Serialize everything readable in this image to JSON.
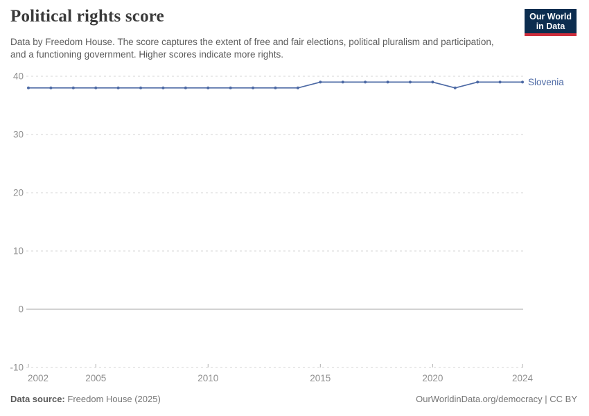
{
  "header": {
    "title": "Political rights score",
    "subtitle": "Data by Freedom House. The score captures the extent of free and fair elections, political pluralism and participation, and a functioning government. Higher scores indicate more rights.",
    "logo": {
      "line1": "Our World",
      "line2": "in Data"
    }
  },
  "chart_data": {
    "type": "line",
    "title": "Political rights score",
    "xlabel": "",
    "ylabel": "",
    "x": [
      2002,
      2003,
      2004,
      2005,
      2006,
      2007,
      2008,
      2009,
      2010,
      2011,
      2012,
      2013,
      2014,
      2015,
      2016,
      2017,
      2018,
      2019,
      2020,
      2021,
      2022,
      2023,
      2024
    ],
    "series": [
      {
        "name": "Slovenia",
        "color": "#4D6AA5",
        "values": [
          38,
          38,
          38,
          38,
          38,
          38,
          38,
          38,
          38,
          38,
          38,
          38,
          38,
          39,
          39,
          39,
          39,
          39,
          39,
          38,
          39,
          39,
          39
        ]
      }
    ],
    "xlim": [
      2002,
      2024
    ],
    "ylim": [
      -10,
      40
    ],
    "x_ticks": [
      2002,
      2005,
      2010,
      2015,
      2020,
      2024
    ],
    "y_ticks": [
      40,
      30,
      20,
      10,
      0,
      -10
    ],
    "grid": "horizontal-dashed, solid zero line",
    "legend": "inline label at line end"
  },
  "footer": {
    "datasource_label": "Data source:",
    "datasource_value": "Freedom House (2025)",
    "attribution": "OurWorldinData.org/democracy | CC BY"
  },
  "colors": {
    "line": "#4D6AA5",
    "grid": "#d6d6d6",
    "zero_line": "#a6a6a6",
    "tick_mark": "#b0b0b0",
    "tick_text": "#8f8f8f",
    "title_text": "#3a3a3a",
    "subtitle_text": "#5b5b5b",
    "logo_bg": "#0c2d4f",
    "logo_red": "#cf2e3c"
  }
}
